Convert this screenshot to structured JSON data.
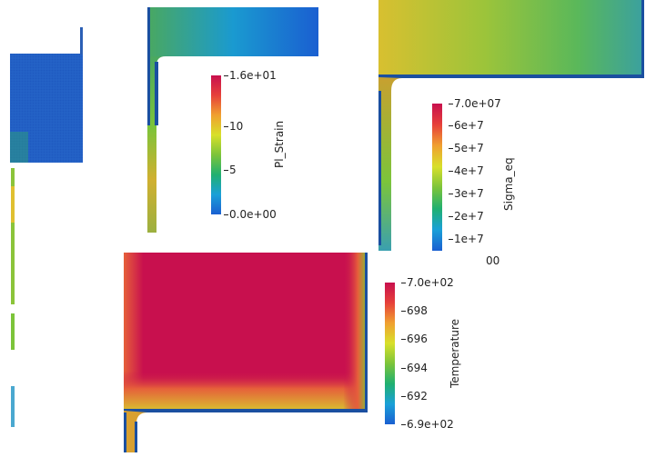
{
  "colormap": [
    "#1a5fd1",
    "#1aa0d8",
    "#20b070",
    "#7cc43a",
    "#d8e02a",
    "#f0a030",
    "#e6403a",
    "#c8104e"
  ],
  "pl_strain": {
    "title": "Pl_Strain",
    "ticks": [
      "1.6e+01",
      "10",
      "5",
      "0.0e+00"
    ]
  },
  "sigma_eq": {
    "title": "Sigma_eq",
    "ticks": [
      "7.0e+07",
      "6e+7",
      "5e+7",
      "4e+7",
      "3e+7",
      "2e+7",
      "1e+7"
    ],
    "cut_label": "00"
  },
  "temperature": {
    "title": "Temperature",
    "ticks": [
      "7.0e+02",
      "698",
      "696",
      "694",
      "692",
      "6.9e+02"
    ]
  }
}
